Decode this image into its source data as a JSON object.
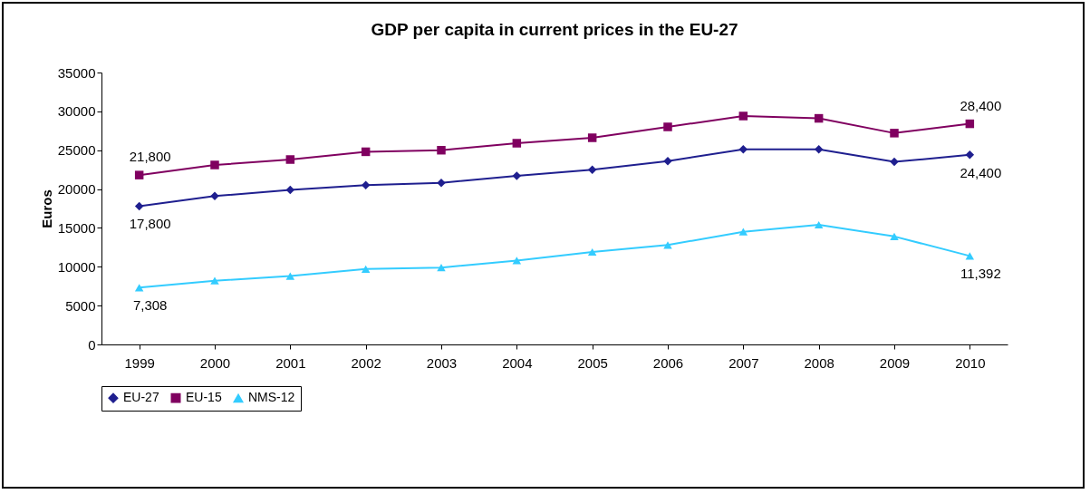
{
  "chart_data": {
    "type": "line",
    "title": "GDP per capita in current prices in the EU-27",
    "ylabel": "Euros",
    "categories": [
      "1999",
      "2000",
      "2001",
      "2002",
      "2003",
      "2004",
      "2005",
      "2006",
      "2007",
      "2008",
      "2009",
      "2010"
    ],
    "series": [
      {
        "name": "EU-27",
        "color": "#1f1f8f",
        "marker": "diamond",
        "values": [
          17800,
          19100,
          19900,
          20500,
          20800,
          21700,
          22500,
          23600,
          25100,
          25100,
          23500,
          24400
        ]
      },
      {
        "name": "EU-15",
        "color": "#800060",
        "marker": "square",
        "values": [
          21800,
          23100,
          23800,
          24800,
          25000,
          25900,
          26600,
          28000,
          29400,
          29100,
          27200,
          28400
        ]
      },
      {
        "name": "NMS-12",
        "color": "#33ccff",
        "marker": "triangle",
        "values": [
          7308,
          8200,
          8800,
          9700,
          9900,
          10800,
          11900,
          12800,
          14500,
          15400,
          13900,
          11392
        ]
      }
    ],
    "ylim": [
      0,
      35000
    ],
    "yticks": [
      0,
      5000,
      10000,
      15000,
      20000,
      25000,
      30000,
      35000
    ],
    "grid": false,
    "legend": "bottom",
    "annotations": [
      {
        "text": "21,800",
        "x": "1999",
        "y": 21800
      },
      {
        "text": "17,800",
        "x": "1999",
        "y": 17800
      },
      {
        "text": "7,308",
        "x": "1999",
        "y": 7308
      },
      {
        "text": "28,400",
        "x": "2010",
        "y": 28400
      },
      {
        "text": "24,400",
        "x": "2010",
        "y": 24400
      },
      {
        "text": "11,392",
        "x": "2010",
        "y": 11392
      }
    ]
  }
}
